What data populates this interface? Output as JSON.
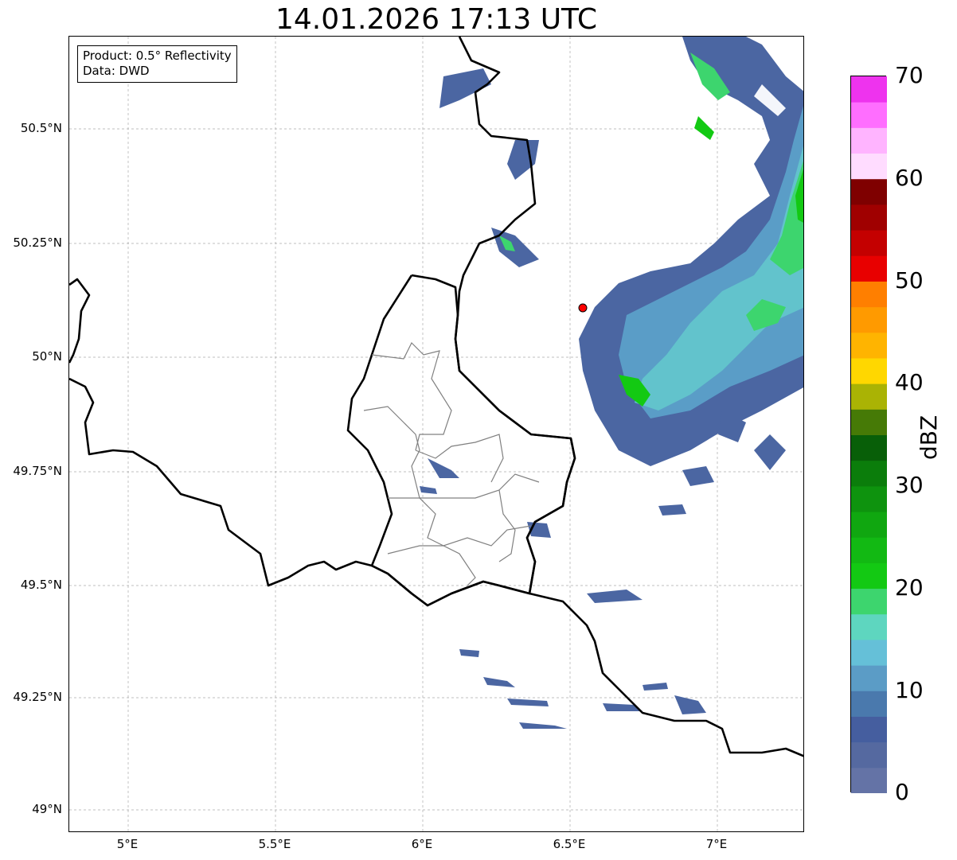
{
  "title": "14.01.2026 17:13 UTC",
  "info": {
    "product": "Product: 0.5° Reflectivity",
    "data": "Data: DWD"
  },
  "lat_ticks": [
    "50.5°N",
    "50.25°N",
    "50°N",
    "49.75°N",
    "49.5°N",
    "49.25°N",
    "49°N"
  ],
  "lon_ticks": [
    "5°E",
    "5.5°E",
    "6°E",
    "6.5°E",
    "7°E"
  ],
  "colorbar": {
    "label": "dBZ",
    "ticks": [
      "0",
      "10",
      "20",
      "30",
      "40",
      "50",
      "60",
      "70"
    ],
    "min": 0,
    "max": 70,
    "step": 2.5,
    "colors": [
      "#6473a6",
      "#5569a0",
      "#455e9f",
      "#4a79ad",
      "#5b9cc6",
      "#65c0d8",
      "#5ed6bf",
      "#3dd56e",
      "#13c913",
      "#12b913",
      "#10a710",
      "#0e930e",
      "#0b7d0b",
      "#085f08",
      "#467a06",
      "#aab304",
      "#ffd700",
      "#ffb400",
      "#ff9a00",
      "#ff7f00",
      "#e80000",
      "#c40000",
      "#a00000",
      "#7f0000",
      "#ffdcff",
      "#ffb4ff",
      "#ff6eff",
      "#ee33ee"
    ]
  },
  "colors": {
    "border": "#000000",
    "admin": "#808080",
    "grid": "#aaaaaa",
    "station": "#ff0000"
  }
}
